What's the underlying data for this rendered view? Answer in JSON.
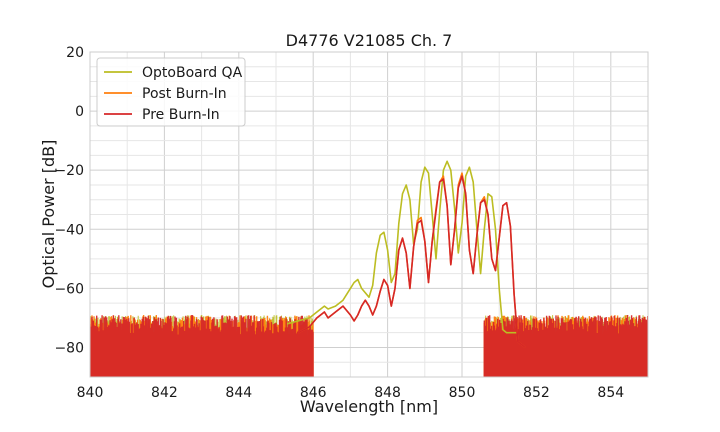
{
  "chart_data": {
    "type": "line",
    "title": "D4776 V21085 Ch. 7",
    "xlabel": "Wavelength [nm]",
    "ylabel": "Optical Power [dB]",
    "xlim": [
      840,
      855
    ],
    "ylim": [
      -90,
      20
    ],
    "xticks": [
      "840",
      "842",
      "844",
      "846",
      "848",
      "850",
      "852",
      "854"
    ],
    "yticks": [
      "20",
      "0",
      "−20",
      "−40",
      "−60",
      "−80"
    ],
    "grid": true,
    "legend_position": "top-left",
    "noise_floor_db": -80,
    "series": [
      {
        "name": "OptoBoard QA",
        "color": "#bcbd22",
        "points": [
          [
            845.3,
            -72
          ],
          [
            845.6,
            -71
          ],
          [
            845.9,
            -70
          ],
          [
            846.1,
            -68
          ],
          [
            846.3,
            -66
          ],
          [
            846.4,
            -67
          ],
          [
            846.6,
            -66
          ],
          [
            846.8,
            -64
          ],
          [
            847.0,
            -60
          ],
          [
            847.1,
            -58
          ],
          [
            847.2,
            -57
          ],
          [
            847.3,
            -60
          ],
          [
            847.5,
            -63
          ],
          [
            847.6,
            -59
          ],
          [
            847.7,
            -48
          ],
          [
            847.8,
            -42
          ],
          [
            847.9,
            -41
          ],
          [
            848.0,
            -47
          ],
          [
            848.1,
            -58
          ],
          [
            848.2,
            -55
          ],
          [
            848.3,
            -38
          ],
          [
            848.4,
            -28
          ],
          [
            848.5,
            -25
          ],
          [
            848.6,
            -30
          ],
          [
            848.7,
            -45
          ],
          [
            848.8,
            -40
          ],
          [
            848.9,
            -24
          ],
          [
            849.0,
            -19
          ],
          [
            849.1,
            -21
          ],
          [
            849.2,
            -35
          ],
          [
            849.3,
            -50
          ],
          [
            849.4,
            -34
          ],
          [
            849.5,
            -20
          ],
          [
            849.6,
            -17
          ],
          [
            849.7,
            -20
          ],
          [
            849.8,
            -33
          ],
          [
            849.9,
            -48
          ],
          [
            850.0,
            -38
          ],
          [
            850.1,
            -22
          ],
          [
            850.2,
            -19
          ],
          [
            850.3,
            -24
          ],
          [
            850.4,
            -40
          ],
          [
            850.5,
            -55
          ],
          [
            850.6,
            -40
          ],
          [
            850.7,
            -28
          ],
          [
            850.8,
            -29
          ],
          [
            850.9,
            -40
          ],
          [
            851.0,
            -60
          ],
          [
            851.1,
            -74
          ],
          [
            851.2,
            -75
          ],
          [
            851.5,
            -75
          ]
        ]
      },
      {
        "name": "Post Burn-In",
        "color": "#ff7f0e",
        "points": [
          [
            845.6,
            -75
          ],
          [
            845.9,
            -73
          ],
          [
            846.1,
            -70
          ],
          [
            846.3,
            -68
          ],
          [
            846.4,
            -70
          ],
          [
            846.6,
            -68
          ],
          [
            846.8,
            -66
          ],
          [
            847.0,
            -69
          ],
          [
            847.1,
            -71
          ],
          [
            847.2,
            -69
          ],
          [
            847.3,
            -66
          ],
          [
            847.4,
            -64
          ],
          [
            847.5,
            -66
          ],
          [
            847.6,
            -69
          ],
          [
            847.7,
            -66
          ],
          [
            847.8,
            -61
          ],
          [
            847.9,
            -57
          ],
          [
            848.0,
            -59
          ],
          [
            848.1,
            -66
          ],
          [
            848.2,
            -60
          ],
          [
            848.3,
            -47
          ],
          [
            848.4,
            -43
          ],
          [
            848.5,
            -48
          ],
          [
            848.6,
            -60
          ],
          [
            848.7,
            -46
          ],
          [
            848.8,
            -37
          ],
          [
            848.9,
            -36
          ],
          [
            849.0,
            -44
          ],
          [
            849.1,
            -58
          ],
          [
            849.2,
            -44
          ],
          [
            849.3,
            -33
          ],
          [
            849.4,
            -24
          ],
          [
            849.5,
            -22
          ],
          [
            849.6,
            -32
          ],
          [
            849.7,
            -52
          ],
          [
            849.8,
            -40
          ],
          [
            849.9,
            -25
          ],
          [
            850.0,
            -21
          ],
          [
            850.1,
            -28
          ],
          [
            850.2,
            -47
          ],
          [
            850.3,
            -55
          ],
          [
            850.4,
            -42
          ],
          [
            850.5,
            -31
          ],
          [
            850.6,
            -29
          ],
          [
            850.7,
            -35
          ],
          [
            850.8,
            -50
          ],
          [
            850.9,
            -54
          ],
          [
            851.0,
            -43
          ],
          [
            851.1,
            -32
          ],
          [
            851.2,
            -31
          ],
          [
            851.3,
            -39
          ],
          [
            851.4,
            -62
          ],
          [
            851.5,
            -78
          ],
          [
            851.7,
            -80
          ]
        ]
      },
      {
        "name": "Pre Burn-In",
        "color": "#d62728",
        "points": [
          [
            845.6,
            -75
          ],
          [
            845.9,
            -73
          ],
          [
            846.1,
            -70
          ],
          [
            846.3,
            -68
          ],
          [
            846.4,
            -70
          ],
          [
            846.6,
            -68
          ],
          [
            846.8,
            -66
          ],
          [
            847.0,
            -69
          ],
          [
            847.1,
            -71
          ],
          [
            847.2,
            -69
          ],
          [
            847.3,
            -66
          ],
          [
            847.4,
            -64
          ],
          [
            847.5,
            -66
          ],
          [
            847.6,
            -69
          ],
          [
            847.7,
            -66
          ],
          [
            847.8,
            -61
          ],
          [
            847.9,
            -57
          ],
          [
            848.0,
            -59
          ],
          [
            848.1,
            -66
          ],
          [
            848.2,
            -60
          ],
          [
            848.3,
            -47
          ],
          [
            848.4,
            -43
          ],
          [
            848.5,
            -48
          ],
          [
            848.6,
            -60
          ],
          [
            848.7,
            -46
          ],
          [
            848.8,
            -38
          ],
          [
            848.9,
            -37
          ],
          [
            849.0,
            -44
          ],
          [
            849.1,
            -58
          ],
          [
            849.2,
            -44
          ],
          [
            849.3,
            -34
          ],
          [
            849.4,
            -24
          ],
          [
            849.5,
            -23
          ],
          [
            849.6,
            -32
          ],
          [
            849.7,
            -52
          ],
          [
            849.8,
            -40
          ],
          [
            849.9,
            -26
          ],
          [
            850.0,
            -22
          ],
          [
            850.1,
            -28
          ],
          [
            850.2,
            -47
          ],
          [
            850.3,
            -55
          ],
          [
            850.4,
            -42
          ],
          [
            850.5,
            -31
          ],
          [
            850.6,
            -30
          ],
          [
            850.7,
            -35
          ],
          [
            850.8,
            -50
          ],
          [
            850.9,
            -54
          ],
          [
            851.0,
            -43
          ],
          [
            851.1,
            -32
          ],
          [
            851.2,
            -31
          ],
          [
            851.3,
            -39
          ],
          [
            851.4,
            -62
          ],
          [
            851.5,
            -78
          ],
          [
            851.7,
            -80
          ]
        ]
      }
    ]
  }
}
